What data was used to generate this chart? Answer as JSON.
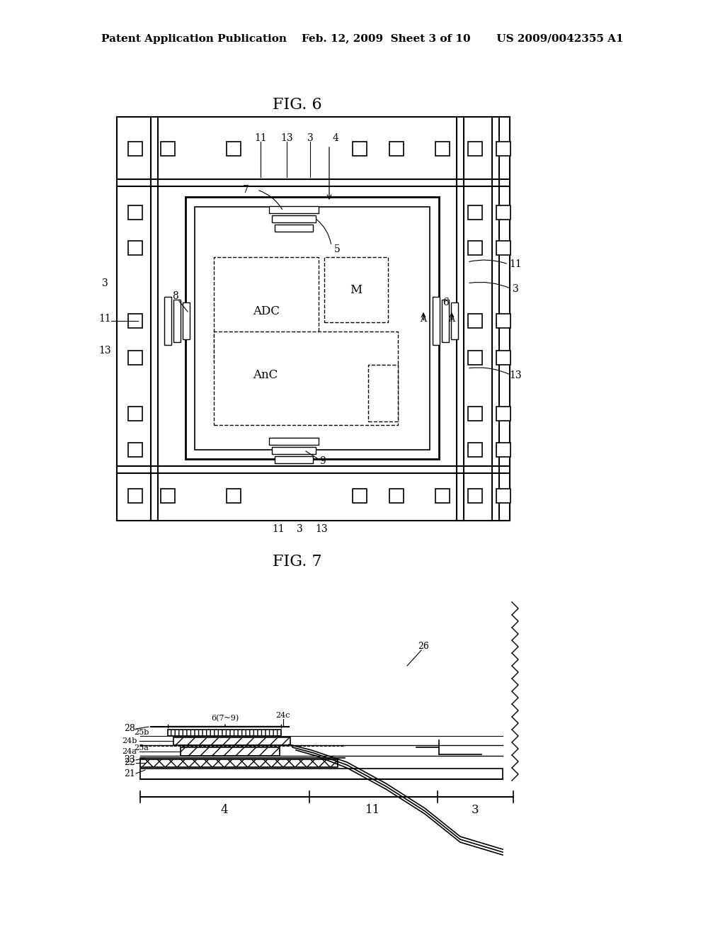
{
  "bg_color": "#ffffff",
  "header_text": "Patent Application Publication    Feb. 12, 2009  Sheet 3 of 10       US 2009/0042355 A1",
  "fig6_title": "FIG. 6",
  "fig7_title": "FIG. 7",
  "header_fontsize": 11,
  "title_fontsize": 16
}
